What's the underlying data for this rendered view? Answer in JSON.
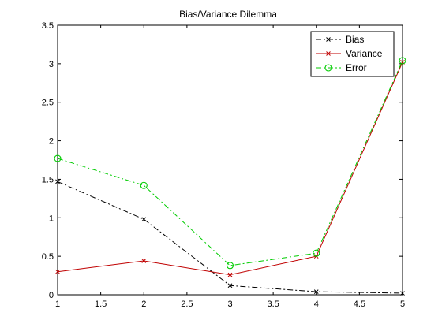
{
  "chart_data": {
    "type": "line",
    "title": "Bias/Variance Dilemma",
    "xlabel": "",
    "ylabel": "",
    "xlim": [
      1,
      5
    ],
    "ylim": [
      0,
      3.5
    ],
    "x_ticks": [
      1,
      1.5,
      2,
      2.5,
      3,
      3.5,
      4,
      4.5,
      5
    ],
    "x_tick_labels": [
      "1",
      "1.5",
      "2",
      "2.5",
      "3",
      "3.5",
      "4",
      "4.5",
      "5"
    ],
    "y_ticks": [
      0,
      0.5,
      1,
      1.5,
      2,
      2.5,
      3,
      3.5
    ],
    "y_tick_labels": [
      "0",
      "0.5",
      "1",
      "1.5",
      "2",
      "2.5",
      "3",
      "3.5"
    ],
    "grid": false,
    "legend_position": "top-right",
    "x": [
      1,
      2,
      3,
      4,
      5
    ],
    "series": [
      {
        "name": "Bias",
        "values": [
          1.47,
          0.98,
          0.12,
          0.04,
          0.02
        ],
        "color": "#000000",
        "line_style": "dash-dot",
        "marker": "x"
      },
      {
        "name": "Variance",
        "values": [
          0.3,
          0.44,
          0.26,
          0.5,
          3.02
        ],
        "color": "#c00000",
        "line_style": "solid",
        "marker": "x"
      },
      {
        "name": "Error",
        "values": [
          1.77,
          1.42,
          0.38,
          0.54,
          3.04
        ],
        "color": "#00cc00",
        "line_style": "dash-dot",
        "marker": "circle"
      }
    ]
  }
}
